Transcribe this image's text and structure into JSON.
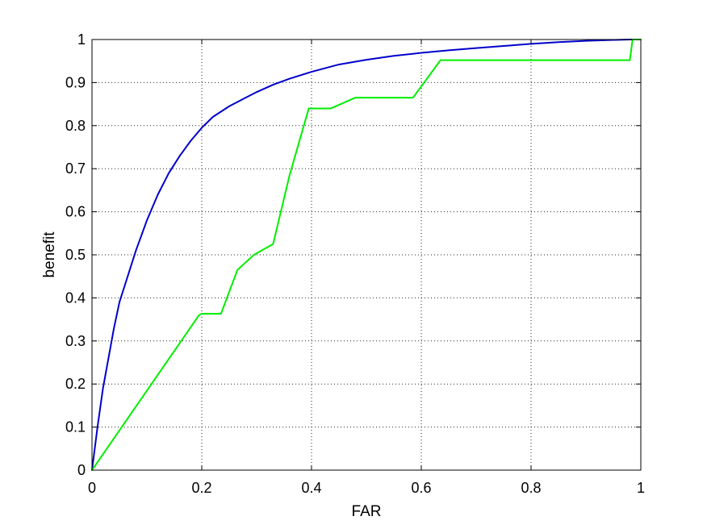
{
  "chart_data": {
    "type": "line",
    "title": "",
    "xlabel": "FAR",
    "ylabel": "benefit",
    "xlim": [
      0,
      1
    ],
    "ylim": [
      0,
      1
    ],
    "x_ticks": [
      "0",
      "0.2",
      "0.4",
      "0.6",
      "0.8",
      "1"
    ],
    "y_ticks": [
      "0",
      "0.1",
      "0.2",
      "0.3",
      "0.4",
      "0.5",
      "0.6",
      "0.7",
      "0.8",
      "0.9",
      "1"
    ],
    "grid": true,
    "legend": "none",
    "series": [
      {
        "color": "#0000cc",
        "x": [
          0,
          0.01,
          0.02,
          0.03,
          0.04,
          0.05,
          0.06,
          0.08,
          0.1,
          0.12,
          0.14,
          0.16,
          0.18,
          0.2,
          0.22,
          0.25,
          0.28,
          0.3,
          0.33,
          0.36,
          0.4,
          0.45,
          0.5,
          0.55,
          0.6,
          0.65,
          0.7,
          0.75,
          0.8,
          0.85,
          0.9,
          0.95,
          0.98,
          1.0
        ],
        "y": [
          0,
          0.1,
          0.19,
          0.26,
          0.33,
          0.39,
          0.43,
          0.51,
          0.58,
          0.64,
          0.69,
          0.73,
          0.765,
          0.795,
          0.82,
          0.845,
          0.865,
          0.878,
          0.895,
          0.909,
          0.925,
          0.942,
          0.953,
          0.962,
          0.969,
          0.975,
          0.98,
          0.985,
          0.99,
          0.994,
          0.997,
          0.999,
          1.0,
          1.0
        ]
      },
      {
        "color": "#00ee00",
        "x": [
          0,
          0.195,
          0.2,
          0.235,
          0.265,
          0.295,
          0.33,
          0.36,
          0.395,
          0.435,
          0.48,
          0.585,
          0.635,
          0.98,
          0.985,
          1.0
        ],
        "y": [
          0,
          0.36,
          0.363,
          0.363,
          0.465,
          0.5,
          0.525,
          0.685,
          0.84,
          0.84,
          0.865,
          0.865,
          0.952,
          0.952,
          1.0,
          1.0
        ]
      }
    ]
  }
}
